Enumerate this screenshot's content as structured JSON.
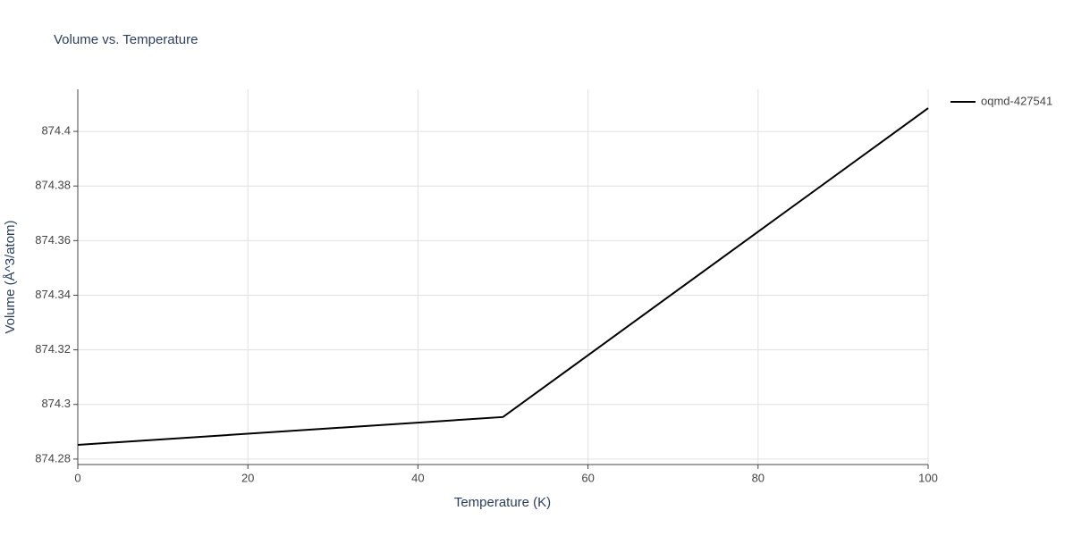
{
  "chart_data": {
    "type": "line",
    "title": "Volume vs. Temperature",
    "x_label": "Temperature (K)",
    "y_label": "Volume (Å^3/atom)",
    "series": [
      {
        "name": "oqmd-427541",
        "color": "#000000",
        "x": [
          0,
          50,
          100
        ],
        "values": [
          874.2852,
          874.2954,
          874.4085
        ]
      }
    ],
    "xlim": [
      0,
      100
    ],
    "xticks": [
      0,
      20,
      40,
      60,
      80,
      100
    ],
    "ylim": [
      874.278,
      874.4154
    ],
    "yticks": [
      874.28,
      874.3,
      874.32,
      874.34,
      874.36,
      874.38,
      874.4
    ],
    "grid": true,
    "legend": "right"
  }
}
